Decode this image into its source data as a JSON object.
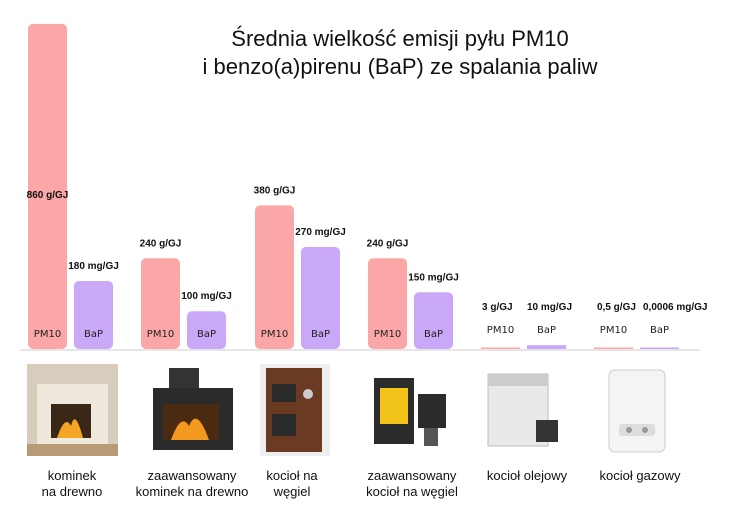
{
  "chart_data": {
    "type": "bar",
    "title": [
      "Średnia wielkość emisji pyłu PM10",
      "i benzo(a)pirenu (BaP) ze spalania paliw"
    ],
    "series_labels": [
      "PM10",
      "BaP"
    ],
    "colors": {
      "PM10": "#fba7a7",
      "BaP": "#c8a8f7"
    },
    "groups": [
      {
        "label": [
          "kominek",
          "na drewno"
        ],
        "pm10": 860,
        "pm10_label": "860 g/GJ",
        "bap": 180,
        "bap_label": "180 mg/GJ"
      },
      {
        "label": [
          "zaawansowany",
          "kominek na drewno"
        ],
        "pm10": 240,
        "pm10_label": "240 g/GJ",
        "bap": 100,
        "bap_label": "100 mg/GJ"
      },
      {
        "label": [
          "kocioł na",
          "węgiel"
        ],
        "pm10": 380,
        "pm10_label": "380 g/GJ",
        "bap": 270,
        "bap_label": "270 mg/GJ"
      },
      {
        "label": [
          "zaawansowany",
          "kocioł na węgiel"
        ],
        "pm10": 240,
        "pm10_label": "240 g/GJ",
        "bap": 150,
        "bap_label": "150 mg/GJ"
      },
      {
        "label": [
          "kocioł olejowy"
        ],
        "pm10": 3,
        "pm10_label": "3 g/GJ",
        "bap": 10,
        "bap_label": "10 mg/GJ"
      },
      {
        "label": [
          "kocioł gazowy"
        ],
        "pm10": 0.5,
        "pm10_label": "0,5 g/GJ",
        "bap": 0.0006,
        "bap_label": "0,0006 mg/GJ"
      }
    ]
  }
}
